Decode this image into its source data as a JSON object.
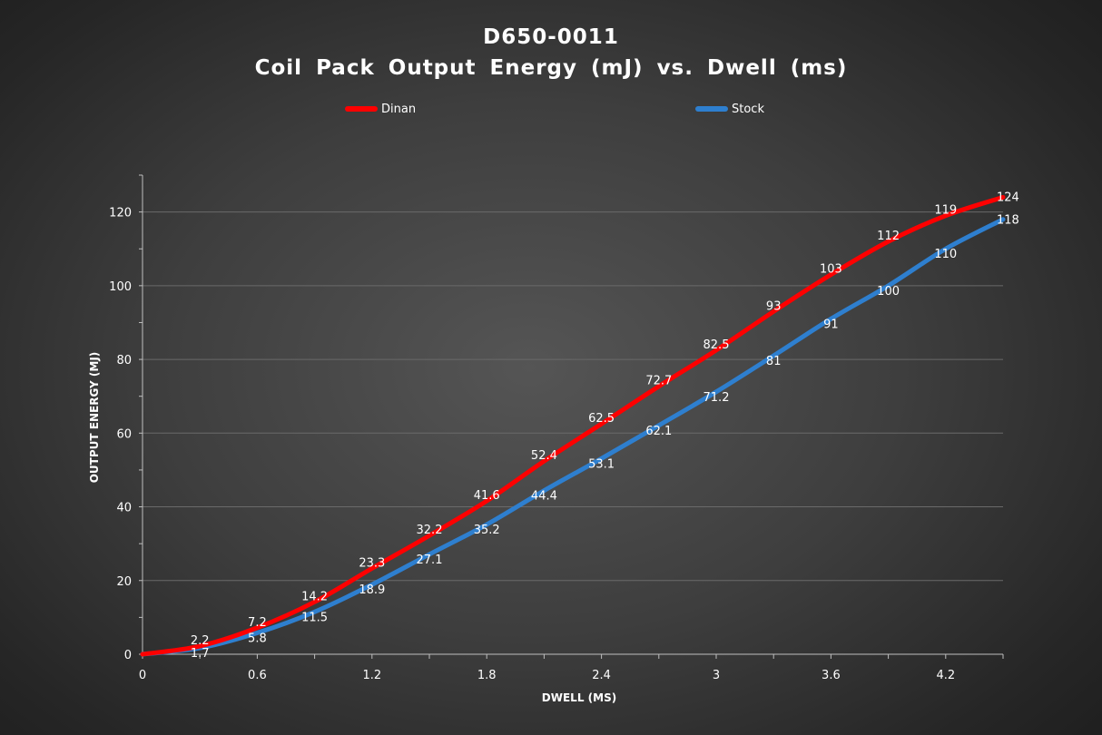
{
  "chart_data": {
    "type": "line",
    "title": "D650-0011",
    "subtitle": "Coil Pack Output Energy (mJ) vs. Dwell (ms)",
    "xlabel": "DWELL (MS)",
    "ylabel": "OUTPUT ENERGY (MJ)",
    "xlim": [
      0,
      4.5
    ],
    "ylim": [
      0,
      130
    ],
    "x_ticks": [
      "0",
      "0.6",
      "1.2",
      "1.8",
      "2.4",
      "3",
      "3.6",
      "4.2"
    ],
    "y_ticks": [
      "0",
      "20",
      "40",
      "60",
      "80",
      "100",
      "120"
    ],
    "grid": "horizontal",
    "legend_position": "top",
    "x": [
      0,
      0.3,
      0.6,
      0.9,
      1.2,
      1.5,
      1.8,
      2.1,
      2.4,
      2.7,
      3.0,
      3.3,
      3.6,
      3.9,
      4.2,
      4.5
    ],
    "series": [
      {
        "name": "Dinan",
        "color": "#ff0000",
        "values": [
          0,
          2.2,
          7.2,
          14.2,
          23.3,
          32.2,
          41.6,
          52.4,
          62.5,
          72.7,
          82.5,
          93,
          103,
          112,
          119,
          124
        ],
        "labels": [
          "",
          "2.2",
          "7.2",
          "14.2",
          "23.3",
          "32.2",
          "41.6",
          "52.4",
          "62.5",
          "72.7",
          "82.5",
          "93",
          "103",
          "112",
          "119",
          "124"
        ]
      },
      {
        "name": "Stock",
        "color": "#2e7fcf",
        "values": [
          0,
          1.7,
          5.8,
          11.5,
          18.9,
          27.1,
          35.2,
          44.4,
          53.1,
          62.1,
          71.2,
          81,
          91,
          100,
          110,
          118
        ],
        "labels": [
          "",
          "1.7",
          "5.8",
          "11.5",
          "18.9",
          "27.1",
          "35.2",
          "44.4",
          "53.1",
          "62.1",
          "71.2",
          "81",
          "91",
          "100",
          "110",
          "118"
        ]
      }
    ]
  }
}
